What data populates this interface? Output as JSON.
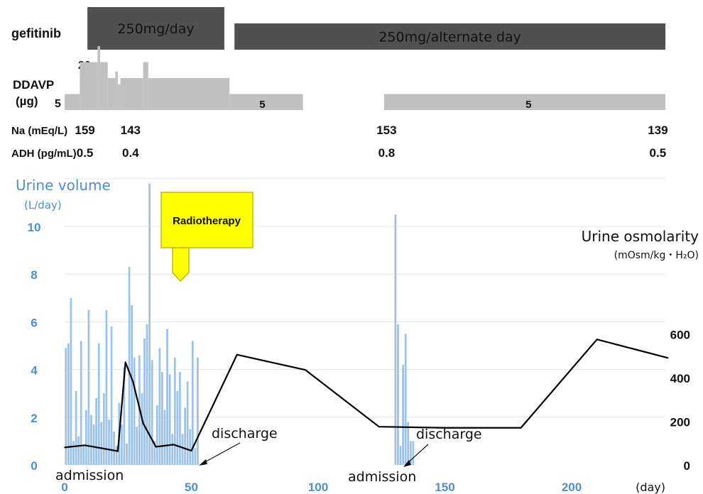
{
  "gefitinib": {
    "label": "gefitinib",
    "periods": [
      {
        "start": 9,
        "end": 63,
        "text": "250mg/day"
      },
      {
        "start": 67,
        "end": 237,
        "text": "250mg/alternate day"
      }
    ]
  },
  "ddavp": {
    "label_line1": "DDAVP",
    "label_line2": "(µg)",
    "left_min_label": "5",
    "peak_label": "20",
    "bar_labels": [
      {
        "day": 78,
        "text": "5"
      },
      {
        "day": 183,
        "text": "5"
      }
    ],
    "steps": [
      {
        "start": 0,
        "end": 6,
        "level": 5
      },
      {
        "start": 6,
        "end": 13,
        "level": 15
      },
      {
        "start": 13,
        "end": 14,
        "level": 20
      },
      {
        "start": 14,
        "end": 17,
        "level": 15
      },
      {
        "start": 17,
        "end": 20,
        "level": 10
      },
      {
        "start": 20,
        "end": 21,
        "level": 12
      },
      {
        "start": 21,
        "end": 22,
        "level": 8
      },
      {
        "start": 22,
        "end": 31,
        "level": 10
      },
      {
        "start": 31,
        "end": 33,
        "level": 15
      },
      {
        "start": 33,
        "end": 65,
        "level": 10
      },
      {
        "start": 65,
        "end": 94,
        "level": 5
      },
      {
        "start": 126,
        "end": 237,
        "level": 5
      }
    ]
  },
  "labs": {
    "na_label": "Na (mEq/L)",
    "adh_label": "ADH (pg/mL)",
    "points": [
      {
        "day": 8,
        "na": "159",
        "adh": "0.5"
      },
      {
        "day": 26,
        "na": "143",
        "adh": "0.4"
      },
      {
        "day": 127,
        "na": "153",
        "adh": "0.8"
      },
      {
        "day": 234,
        "na": "139",
        "adh": "0.5"
      }
    ]
  },
  "annotations": {
    "radiotherapy": "Radiotherapy",
    "admission_1": "admission",
    "admission_2": "admission",
    "discharge_1": "discharge",
    "discharge_2": "discharge"
  },
  "chart_data": {
    "type": "bar",
    "x_label": "(day)",
    "x_ticks": [
      0,
      50,
      100,
      150,
      200
    ],
    "xlim": [
      0,
      238
    ],
    "left_axis": {
      "label": "Urine volume",
      "unit": "(L/day)",
      "ylim": [
        0,
        12
      ],
      "ticks": [
        0,
        2,
        4,
        6,
        8,
        10
      ]
    },
    "right_axis": {
      "label": "Urine osmolarity",
      "unit": "(mOsm/kg・H₂O)",
      "ylim": [
        0,
        800
      ],
      "ticks": [
        0,
        200,
        400,
        600
      ]
    },
    "colors": {
      "bars": "#9dc3e6",
      "line": "#000000",
      "gefitinib": "#505050",
      "ddavp": "#c0c0c0",
      "radiotherapy": "#ffff00"
    },
    "urine_volume": {
      "days": [
        0,
        1,
        2,
        3,
        4,
        5,
        6,
        7,
        8,
        9,
        10,
        11,
        12,
        13,
        14,
        15,
        16,
        17,
        18,
        19,
        20,
        21,
        22,
        23,
        24,
        25,
        26,
        27,
        28,
        29,
        30,
        31,
        32,
        33,
        34,
        35,
        36,
        37,
        38,
        39,
        40,
        41,
        42,
        43,
        44,
        45,
        46,
        47,
        48,
        49,
        50,
        51,
        52,
        130,
        131,
        132,
        133,
        134,
        135,
        136,
        137
      ],
      "values": [
        4.9,
        5.1,
        7.0,
        1.0,
        3.1,
        1.2,
        5.2,
        0.8,
        2.3,
        6.5,
        2.1,
        1.7,
        2.8,
        5.1,
        1.8,
        3.0,
        6.5,
        1.9,
        5.8,
        1.4,
        0.8,
        2.6,
        1.7,
        4.1,
        0.9,
        8.3,
        6.7,
        4.5,
        1.6,
        4.6,
        3.0,
        5.3,
        5.9,
        11.8,
        4.4,
        1.0,
        2.5,
        4.9,
        3.9,
        2.3,
        5.7,
        3.8,
        1.3,
        4.5,
        3.1,
        3.9,
        1.3,
        2.4,
        3.5,
        1.5,
        5.2,
        0.7,
        4.5,
        10.5,
        5.9,
        0.8,
        4.2,
        5.5,
        1.8,
        1.0,
        1.0
      ]
    },
    "urine_osmolarity": {
      "days": [
        0,
        8,
        21,
        24,
        27,
        31,
        36,
        43,
        50,
        68,
        95,
        124,
        150,
        180,
        210,
        238
      ],
      "values": [
        80,
        90,
        63,
        470,
        380,
        190,
        83,
        93,
        65,
        505,
        435,
        175,
        170,
        170,
        575,
        490
      ]
    }
  }
}
